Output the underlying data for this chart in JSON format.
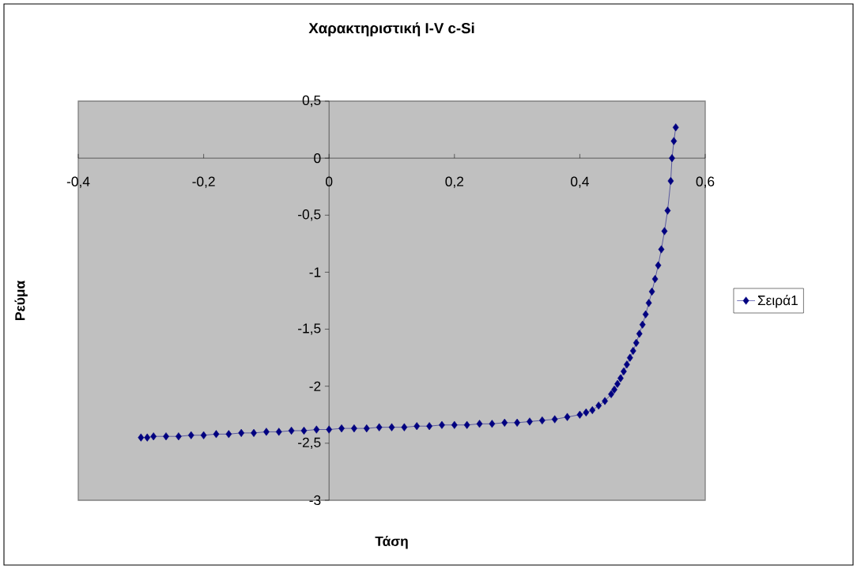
{
  "chart_data": {
    "type": "line",
    "title": "Χαρακτηριστική I-V c-Si",
    "xlabel": "Τάση",
    "ylabel": "Ρεύμα",
    "xlim": [
      -0.4,
      0.6
    ],
    "ylim": [
      -3,
      0.5
    ],
    "xticks": [
      {
        "value": -0.4,
        "label": "-0,4"
      },
      {
        "value": -0.2,
        "label": "-0,2"
      },
      0,
      {
        "value": 0.2,
        "label": "0,2"
      },
      {
        "value": 0.4,
        "label": "0,4"
      },
      {
        "value": 0.6,
        "label": "0,6"
      }
    ],
    "yticks": [
      {
        "value": 0.5,
        "label": "0,5"
      },
      0,
      {
        "value": -0.5,
        "label": "-0,5"
      },
      -1,
      {
        "value": -1.5,
        "label": "-1,5"
      },
      -2,
      {
        "value": -2.5,
        "label": "-2,5"
      },
      -3
    ],
    "grid": false,
    "legend": "right",
    "marker": "diamond",
    "line_style": "solid",
    "series": [
      {
        "name": "Σειρά1",
        "color": "#000080",
        "x": [
          -0.3,
          -0.29,
          -0.28,
          -0.26,
          -0.24,
          -0.22,
          -0.2,
          -0.18,
          -0.16,
          -0.14,
          -0.12,
          -0.1,
          -0.08,
          -0.06,
          -0.04,
          -0.02,
          0,
          0.02,
          0.04,
          0.06,
          0.08,
          0.1,
          0.12,
          0.14,
          0.16,
          0.18,
          0.2,
          0.22,
          0.24,
          0.26,
          0.28,
          0.3,
          0.32,
          0.34,
          0.36,
          0.38,
          0.4,
          0.41,
          0.42,
          0.43,
          0.44,
          0.45,
          0.455,
          0.46,
          0.465,
          0.47,
          0.475,
          0.48,
          0.485,
          0.49,
          0.495,
          0.5,
          0.505,
          0.51,
          0.515,
          0.52,
          0.525,
          0.53,
          0.535,
          0.54,
          0.545,
          0.547,
          0.55,
          0.553
        ],
        "values": [
          -2.45,
          -2.45,
          -2.44,
          -2.44,
          -2.44,
          -2.43,
          -2.43,
          -2.42,
          -2.42,
          -2.41,
          -2.41,
          -2.4,
          -2.4,
          -2.39,
          -2.39,
          -2.38,
          -2.38,
          -2.37,
          -2.37,
          -2.37,
          -2.36,
          -2.36,
          -2.36,
          -2.35,
          -2.35,
          -2.34,
          -2.34,
          -2.34,
          -2.33,
          -2.33,
          -2.32,
          -2.32,
          -2.31,
          -2.3,
          -2.29,
          -2.27,
          -2.25,
          -2.23,
          -2.21,
          -2.17,
          -2.13,
          -2.07,
          -2.03,
          -1.98,
          -1.93,
          -1.87,
          -1.81,
          -1.75,
          -1.69,
          -1.62,
          -1.54,
          -1.46,
          -1.37,
          -1.27,
          -1.17,
          -1.06,
          -0.94,
          -0.8,
          -0.64,
          -0.46,
          -0.2,
          0,
          0.15,
          0.27
        ]
      }
    ]
  }
}
